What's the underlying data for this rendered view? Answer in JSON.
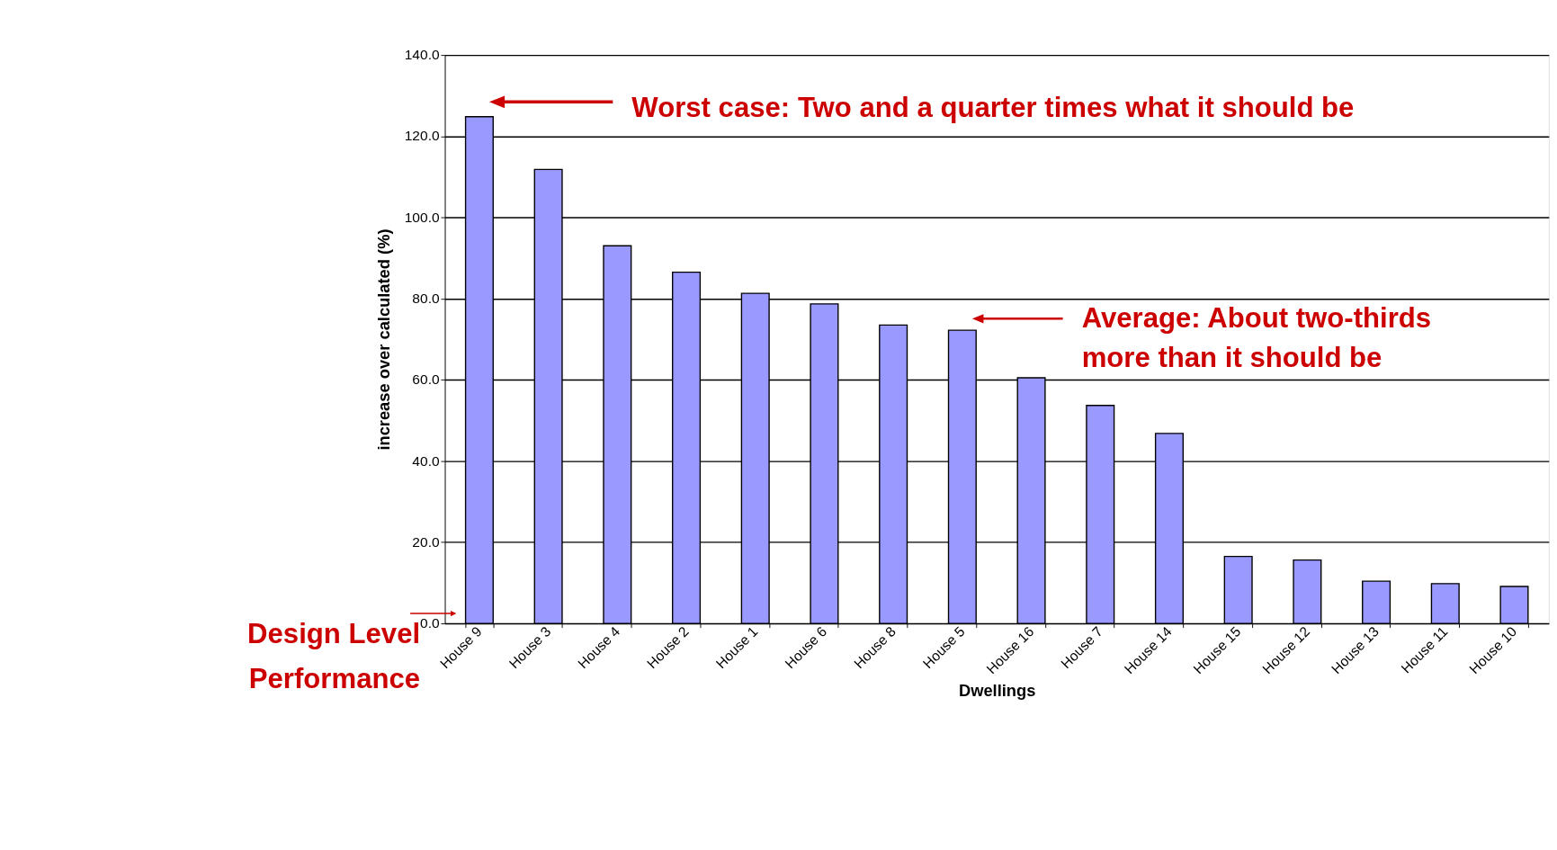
{
  "chart_data": {
    "type": "bar",
    "xlabel": "Dwellings",
    "ylabel": "increase over calculated (%)",
    "categories": [
      "House 9",
      "House 3",
      "House 4",
      "House 2",
      "House 1",
      "House 6",
      "House 8",
      "House 5",
      "House 16",
      "House 7",
      "House 14",
      "House 15",
      "House 12",
      "House 13",
      "House 11",
      "House 10"
    ],
    "values": [
      124.8,
      111.8,
      93.0,
      86.5,
      81.3,
      78.7,
      73.5,
      72.2,
      60.5,
      53.7,
      46.8,
      16.5,
      15.6,
      10.4,
      9.8,
      9.1
    ],
    "color": "#9999ff",
    "ylim": [
      0,
      140
    ],
    "yticks": [
      {
        "value": 0,
        "label": "0.0"
      },
      {
        "value": 20,
        "label": "20.0"
      },
      {
        "value": 40,
        "label": "40.0"
      },
      {
        "value": 60,
        "label": "60.0"
      },
      {
        "value": 80,
        "label": "80.0"
      },
      {
        "value": 100,
        "label": "100.0"
      },
      {
        "value": 120,
        "label": "120.0"
      },
      {
        "value": 140,
        "label": "140.0"
      }
    ],
    "grid": "y",
    "annotations": [
      "Worst case: Two and a quarter times what it should be",
      "Average: About two-thirds\nmore than it should be",
      "Design Level\nPerformance"
    ]
  }
}
